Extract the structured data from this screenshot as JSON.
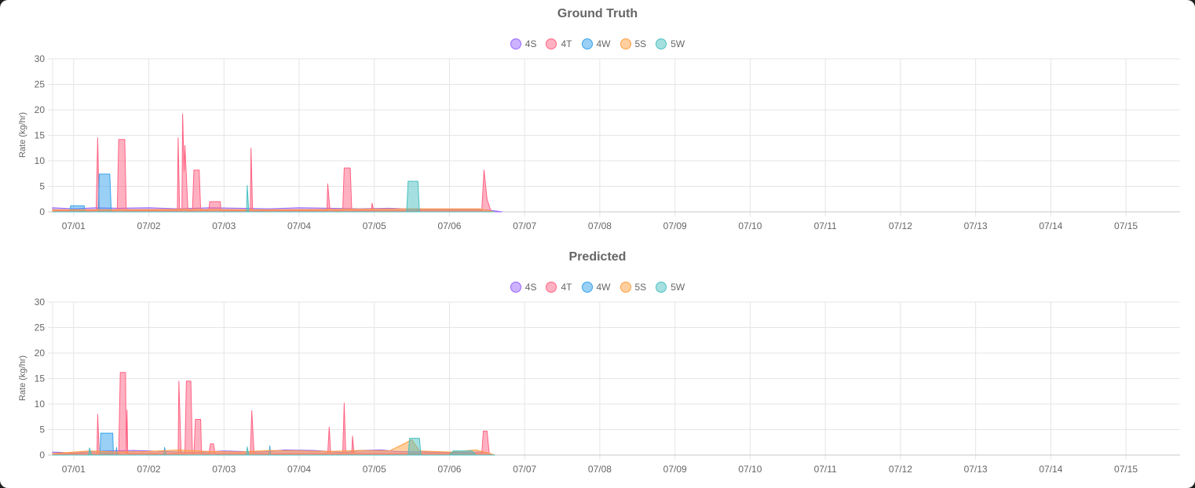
{
  "chart_data": [
    {
      "type": "area",
      "id": "gt",
      "title": "Ground Truth",
      "ylabel": "Rate (kg/hr)",
      "xlabel": "",
      "ylim": [
        0,
        30
      ],
      "yticks": [
        0,
        5,
        10,
        15,
        20,
        25,
        30
      ],
      "xlim": [
        0.72,
        15.72
      ],
      "xticks": [
        {
          "x": 1,
          "label": "07/01"
        },
        {
          "x": 2,
          "label": "07/02"
        },
        {
          "x": 3,
          "label": "07/03"
        },
        {
          "x": 4,
          "label": "07/04"
        },
        {
          "x": 5,
          "label": "07/05"
        },
        {
          "x": 6,
          "label": "07/06"
        },
        {
          "x": 7,
          "label": "07/07"
        },
        {
          "x": 8,
          "label": "07/08"
        },
        {
          "x": 9,
          "label": "07/09"
        },
        {
          "x": 10,
          "label": "07/10"
        },
        {
          "x": 11,
          "label": "07/11"
        },
        {
          "x": 12,
          "label": "07/12"
        },
        {
          "x": 13,
          "label": "07/13"
        },
        {
          "x": 14,
          "label": "07/14"
        },
        {
          "x": 15,
          "label": "07/15"
        }
      ],
      "grid": true,
      "legend_position": "top-center",
      "series": [
        {
          "name": "4S",
          "color": "#9966ff",
          "fill": "rgba(153,102,255,0.5)",
          "points": [
            [
              0.72,
              0.8
            ],
            [
              1.0,
              0.6
            ],
            [
              1.3,
              0.8
            ],
            [
              1.6,
              0.7
            ],
            [
              2.0,
              0.8
            ],
            [
              2.4,
              0.6
            ],
            [
              2.8,
              0.8
            ],
            [
              3.2,
              0.7
            ],
            [
              3.6,
              0.6
            ],
            [
              4.0,
              0.8
            ],
            [
              4.4,
              0.7
            ],
            [
              4.8,
              0.6
            ],
            [
              5.2,
              0.7
            ],
            [
              5.6,
              0.5
            ],
            [
              6.0,
              0.5
            ],
            [
              6.4,
              0.5
            ],
            [
              6.55,
              0.3
            ],
            [
              6.7,
              0
            ]
          ]
        },
        {
          "name": "4T",
          "color": "#ff6384",
          "fill": "rgba(255,99,132,0.5)",
          "points": [
            [
              0.72,
              0.3
            ],
            [
              1.3,
              0.3
            ],
            [
              1.32,
              14.5
            ],
            [
              1.34,
              0.3
            ],
            [
              1.58,
              0.3
            ],
            [
              1.6,
              14.2
            ],
            [
              1.68,
              14.2
            ],
            [
              1.7,
              0.3
            ],
            [
              2.38,
              0.3
            ],
            [
              2.39,
              14.5
            ],
            [
              2.41,
              0.3
            ],
            [
              2.44,
              0.3
            ],
            [
              2.45,
              19.2
            ],
            [
              2.47,
              8
            ],
            [
              2.48,
              13
            ],
            [
              2.5,
              7
            ],
            [
              2.52,
              0.3
            ],
            [
              2.58,
              0.3
            ],
            [
              2.6,
              8.2
            ],
            [
              2.67,
              8.2
            ],
            [
              2.69,
              0.3
            ],
            [
              2.8,
              0.3
            ],
            [
              2.81,
              2
            ],
            [
              2.95,
              2
            ],
            [
              2.96,
              0.3
            ],
            [
              3.35,
              0.3
            ],
            [
              3.36,
              12.5
            ],
            [
              3.38,
              0.3
            ],
            [
              4.37,
              0.3
            ],
            [
              4.38,
              5.5
            ],
            [
              4.41,
              0.3
            ],
            [
              4.58,
              0.3
            ],
            [
              4.6,
              8.6
            ],
            [
              4.68,
              8.6
            ],
            [
              4.7,
              0.3
            ],
            [
              4.96,
              0.3
            ],
            [
              4.97,
              1.7
            ],
            [
              4.99,
              0.3
            ],
            [
              6.43,
              0.3
            ],
            [
              6.46,
              8.2
            ],
            [
              6.5,
              2.5
            ],
            [
              6.55,
              0.2
            ],
            [
              6.6,
              0
            ]
          ]
        },
        {
          "name": "4W",
          "color": "#36a2eb",
          "fill": "rgba(54,162,235,0.5)",
          "points": [
            [
              0.72,
              0
            ],
            [
              0.95,
              0
            ],
            [
              0.96,
              1.2
            ],
            [
              1.14,
              1.2
            ],
            [
              1.15,
              0
            ],
            [
              1.33,
              0
            ],
            [
              1.34,
              7.4
            ],
            [
              1.48,
              7.4
            ],
            [
              1.5,
              0
            ],
            [
              6.6,
              0
            ]
          ]
        },
        {
          "name": "5S",
          "color": "#ff9f40",
          "fill": "rgba(255,159,64,0.5)",
          "points": [
            [
              0.72,
              0.4
            ],
            [
              1.5,
              0.4
            ],
            [
              2.5,
              0.5
            ],
            [
              3.5,
              0.4
            ],
            [
              4.5,
              0.5
            ],
            [
              5.5,
              0.6
            ],
            [
              6.0,
              0.6
            ],
            [
              6.4,
              0.6
            ],
            [
              6.5,
              0.3
            ],
            [
              6.6,
              0
            ]
          ]
        },
        {
          "name": "5W",
          "color": "#4bc0c0",
          "fill": "rgba(75,192,192,0.5)",
          "points": [
            [
              0.72,
              0
            ],
            [
              3.3,
              0
            ],
            [
              3.31,
              5.2
            ],
            [
              3.33,
              0
            ],
            [
              5.43,
              0
            ],
            [
              5.45,
              6
            ],
            [
              5.58,
              6
            ],
            [
              5.6,
              0
            ],
            [
              6.6,
              0
            ]
          ]
        }
      ]
    },
    {
      "type": "area",
      "id": "pred",
      "title": "Predicted",
      "ylabel": "Rate (kg/hr)",
      "xlabel": "",
      "ylim": [
        0,
        30
      ],
      "yticks": [
        0,
        5,
        10,
        15,
        20,
        25,
        30
      ],
      "xlim": [
        0.72,
        15.72
      ],
      "xticks": [
        {
          "x": 1,
          "label": "07/01"
        },
        {
          "x": 2,
          "label": "07/02"
        },
        {
          "x": 3,
          "label": "07/03"
        },
        {
          "x": 4,
          "label": "07/04"
        },
        {
          "x": 5,
          "label": "07/05"
        },
        {
          "x": 6,
          "label": "07/06"
        },
        {
          "x": 7,
          "label": "07/07"
        },
        {
          "x": 8,
          "label": "07/08"
        },
        {
          "x": 9,
          "label": "07/09"
        },
        {
          "x": 10,
          "label": "07/10"
        },
        {
          "x": 11,
          "label": "07/11"
        },
        {
          "x": 12,
          "label": "07/12"
        },
        {
          "x": 13,
          "label": "07/13"
        },
        {
          "x": 14,
          "label": "07/14"
        },
        {
          "x": 15,
          "label": "07/15"
        }
      ],
      "grid": true,
      "legend_position": "top-center",
      "series": [
        {
          "name": "4S",
          "color": "#9966ff",
          "fill": "rgba(153,102,255,0.5)",
          "points": [
            [
              0.72,
              0.6
            ],
            [
              1.0,
              0.4
            ],
            [
              1.4,
              0.8
            ],
            [
              1.8,
              0.9
            ],
            [
              2.2,
              0.7
            ],
            [
              2.6,
              0.5
            ],
            [
              3.0,
              0.8
            ],
            [
              3.5,
              0.6
            ],
            [
              3.8,
              1.0
            ],
            [
              4.2,
              0.9
            ],
            [
              4.6,
              0.5
            ],
            [
              4.8,
              0.9
            ],
            [
              5.1,
              1.0
            ],
            [
              5.3,
              0.7
            ],
            [
              5.7,
              0.6
            ],
            [
              6.0,
              0.5
            ],
            [
              6.4,
              0.6
            ],
            [
              6.5,
              0.4
            ],
            [
              6.6,
              0
            ]
          ]
        },
        {
          "name": "4T",
          "color": "#ff6384",
          "fill": "rgba(255,99,132,0.5)",
          "points": [
            [
              0.72,
              0.3
            ],
            [
              1.31,
              0.3
            ],
            [
              1.32,
              8
            ],
            [
              1.34,
              0.3
            ],
            [
              1.6,
              0.3
            ],
            [
              1.62,
              16.2
            ],
            [
              1.69,
              16.2
            ],
            [
              1.7,
              0.3
            ],
            [
              1.71,
              8.8
            ],
            [
              1.72,
              0.3
            ],
            [
              2.39,
              0.3
            ],
            [
              2.4,
              14.5
            ],
            [
              2.43,
              0.3
            ],
            [
              2.48,
              0.3
            ],
            [
              2.5,
              14.5
            ],
            [
              2.56,
              14.5
            ],
            [
              2.58,
              0.3
            ],
            [
              2.6,
              0.3
            ],
            [
              2.62,
              7
            ],
            [
              2.69,
              7
            ],
            [
              2.7,
              0.3
            ],
            [
              2.8,
              0.3
            ],
            [
              2.82,
              2.2
            ],
            [
              2.86,
              2.2
            ],
            [
              2.88,
              0.3
            ],
            [
              3.35,
              0.3
            ],
            [
              3.37,
              8.7
            ],
            [
              3.4,
              0.3
            ],
            [
              4.38,
              0.3
            ],
            [
              4.4,
              5.5
            ],
            [
              4.42,
              0.3
            ],
            [
              4.58,
              0.3
            ],
            [
              4.6,
              10.2
            ],
            [
              4.62,
              0.3
            ],
            [
              4.7,
              0.3
            ],
            [
              4.71,
              3.7
            ],
            [
              4.73,
              0.3
            ],
            [
              6.43,
              0.3
            ],
            [
              6.45,
              4.7
            ],
            [
              6.5,
              4.7
            ],
            [
              6.53,
              0.3
            ],
            [
              6.6,
              0
            ]
          ]
        },
        {
          "name": "4W",
          "color": "#36a2eb",
          "fill": "rgba(54,162,235,0.5)",
          "points": [
            [
              0.72,
              0
            ],
            [
              1.35,
              0
            ],
            [
              1.36,
              4.3
            ],
            [
              1.52,
              4.3
            ],
            [
              1.53,
              0
            ],
            [
              1.56,
              0
            ],
            [
              1.57,
              1.5
            ],
            [
              1.58,
              0
            ],
            [
              2.2,
              0
            ],
            [
              2.21,
              1.5
            ],
            [
              2.23,
              0
            ],
            [
              3.6,
              0
            ],
            [
              3.61,
              1.8
            ],
            [
              3.62,
              0
            ],
            [
              6.6,
              0
            ]
          ]
        },
        {
          "name": "5S",
          "color": "#ff9f40",
          "fill": "rgba(255,159,64,0.5)",
          "points": [
            [
              0.72,
              0.3
            ],
            [
              1.2,
              0.8
            ],
            [
              1.6,
              0.6
            ],
            [
              2.0,
              0.7
            ],
            [
              2.4,
              1.0
            ],
            [
              2.8,
              0.7
            ],
            [
              3.2,
              0.6
            ],
            [
              3.6,
              0.9
            ],
            [
              4.0,
              0.8
            ],
            [
              4.4,
              0.7
            ],
            [
              4.8,
              0.9
            ],
            [
              5.2,
              0.8
            ],
            [
              5.5,
              3
            ],
            [
              5.6,
              0.8
            ],
            [
              6.0,
              0.6
            ],
            [
              6.35,
              1.0
            ],
            [
              6.5,
              0.5
            ],
            [
              6.6,
              0
            ]
          ]
        },
        {
          "name": "5W",
          "color": "#4bc0c0",
          "fill": "rgba(75,192,192,0.5)",
          "points": [
            [
              0.72,
              0
            ],
            [
              1.2,
              0
            ],
            [
              1.21,
              1.4
            ],
            [
              1.24,
              0
            ],
            [
              3.3,
              0
            ],
            [
              3.31,
              1.6
            ],
            [
              3.33,
              0
            ],
            [
              5.45,
              0
            ],
            [
              5.47,
              3.3
            ],
            [
              5.6,
              3.3
            ],
            [
              5.62,
              0
            ],
            [
              6.0,
              0
            ],
            [
              6.05,
              0.8
            ],
            [
              6.3,
              0.8
            ],
            [
              6.35,
              0
            ],
            [
              6.6,
              0
            ]
          ]
        }
      ]
    }
  ]
}
